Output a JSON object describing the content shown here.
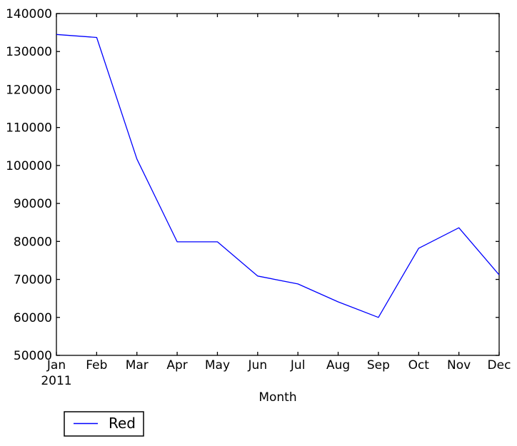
{
  "figure": {
    "background": "#ffffff",
    "axes_color": "#000000",
    "text_color": "#000000"
  },
  "chart_data": {
    "type": "line",
    "title": "",
    "xlabel": "Month",
    "ylabel": "",
    "x_tick_labels": [
      "Jan",
      "Feb",
      "Mar",
      "Apr",
      "May",
      "Jun",
      "Jul",
      "Aug",
      "Sep",
      "Oct",
      "Nov",
      "Dec"
    ],
    "x_first_tick_sublabel": "2011",
    "ylim": [
      50000,
      140000
    ],
    "y_ticks": [
      50000,
      60000,
      70000,
      80000,
      90000,
      100000,
      110000,
      120000,
      130000,
      140000
    ],
    "grid": false,
    "legend": {
      "visible": true,
      "location": "lower-left-below-axes",
      "entries": [
        "Red"
      ]
    },
    "series": [
      {
        "name": "Red",
        "color": "#0000ff",
        "values": [
          134500,
          133700,
          101700,
          79900,
          79900,
          70900,
          68800,
          64100,
          60000,
          78200,
          83600,
          71200
        ]
      }
    ]
  }
}
